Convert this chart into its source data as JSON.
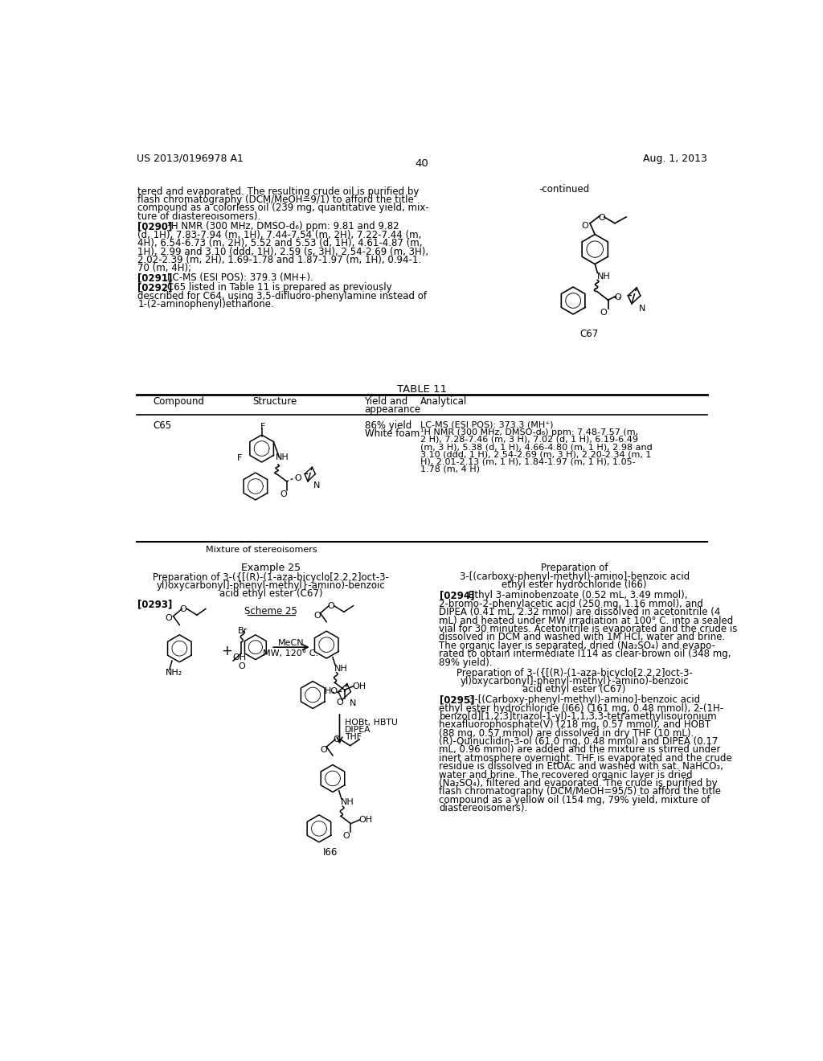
{
  "background_color": "#ffffff",
  "top_left_text": "US 2013/0196978 A1",
  "top_right_text": "Aug. 1, 2013",
  "page_num_text": "40",
  "para_left_1_lines": [
    "tered and evaporated. The resulting crude oil is purified by",
    "flash chromatography (DCM/MeOH=9/1) to afford the title",
    "compound as a colorless oil (239 mg, quantitative yield, mix-",
    "ture of diastereoisomers)."
  ],
  "para_0290_tag": "[0290]",
  "para_0290_lines": [
    "¹H NMR (300 MHz, DMSO-d₆) ppm: 9.81 and 9.82",
    "(d, 1H), 7.83-7.94 (m, 1H), 7.44-7.54 (m, 2H), 7.22-7.44 (m,",
    "4H), 6.54-6.73 (m, 2H), 5.52 and 5.53 (d, 1H), 4.61-4.87 (m,",
    "1H), 2.99 and 3.10 (ddd, 1H), 2.59 (s, 3H), 2.54-2.69 (m, 3H),",
    "2.02-2.39 (m, 2H), 1.69-1.78 and 1.87-1.97 (m, 1H), 0.94-1.",
    "70 (m, 4H);"
  ],
  "para_0291_tag": "[0291]",
  "para_0291_text": "LC-MS (ESI POS): 379.3 (MH+).",
  "para_0292_tag": "[0292]",
  "para_0292_lines": [
    "C65 listed in Table 11 is prepared as previously",
    "described for C64, using 3,5-difluoro-phenylamine instead of",
    "1-(2-aminophenyl)ethanone."
  ],
  "continued_label": "-continued",
  "c67_label": "C67",
  "table_title": "TABLE 11",
  "table_col1": "Compound",
  "table_col2": "Structure",
  "table_col3a": "Yield and",
  "table_col3b": "appearance",
  "table_col4": "Analytical",
  "table_compound": "C65",
  "table_yield_line1": "86% yield",
  "table_yield_line2": "White foam",
  "table_analytical_lines": [
    "LC-MS (ESI POS): 373.3 (MH⁺)",
    "¹H NMR (300 MHz, DMSO-d₆) ppm: 7.48-7.57 (m,",
    "2 H), 7.28-7.46 (m, 3 H), 7.02 (d, 1 H), 6.19-6.49",
    "(m, 3 H), 5.38 (d, 1 H), 4.66-4.80 (m, 1 H), 2.98 and",
    "3.10 (ddd, 1 H), 2.54-2.69 (m, 3 H), 2.20-2.34 (m, 1",
    "H), 2.01-2.13 (m, 1 H), 1.84-1.97 (m, 1 H), 1.05-",
    "1.78 (m, 4 H)"
  ],
  "table_footnote": "Mixture of stereoisomers",
  "ex25_title": "Example 25",
  "ex25_sub_lines": [
    "Preparation of 3-({[(R)-(1-aza-bicyclo[2.2.2]oct-3-",
    "yl)oxycarbonyl]-phenyl-methyl}-amino)-benzoic",
    "acid ethyl ester (C67)"
  ],
  "ex25_tag": "[0293]",
  "scheme25": "Scheme 25",
  "right_head1": "Preparation of",
  "right_head2_lines": [
    "3-[(carboxy-phenyl-methyl)-amino]-benzoic acid",
    "ethyl ester hydrochloride (I66)"
  ],
  "para_0294_tag": "[0294]",
  "para_0294_lines": [
    "Ethyl 3-aminobenzoate (0.52 mL, 3.49 mmol),",
    "2-bromo-2-phenylacetic acid (250 mg, 1.16 mmol), and",
    "DIPEA (0.41 mL, 2.32 mmol) are dissolved in acetonitrile (4",
    "mL) and heated under MW irradiation at 100° C. into a sealed",
    "vial for 30 minutes. Acetonitrile is evaporated and the crude is",
    "dissolved in DCM and washed with 1M HCl, water and brine.",
    "The organic layer is separated, dried (Na₂SO₄) and evapo-",
    "rated to obtain intermediate I114 as clear-brown oil (348 mg,",
    "89% yield)."
  ],
  "right_prep2_lines": [
    "Preparation of 3-({[(R)-(1-aza-bicyclo[2.2.2]oct-3-",
    "yl)oxycarbonyl]-phenyl-methyl}-amino)-benzoic",
    "acid ethyl ester (C67)"
  ],
  "para_0295_tag": "[0295]",
  "para_0295_lines": [
    "3-[(Carboxy-phenyl-methyl)-amino]-benzoic acid",
    "ethyl ester hydrochloride (I66) (161 mg, 0.48 mmol), 2-(1H-",
    "benzo[d][1,2,3]triazol-1-yl)-1,1,3,3-tetramethylisouronium",
    "hexafluorophosphate(V) (218 mg, 0.57 mmol), and HOBT",
    "(88 mg, 0.57 mmol) are dissolved in dry THF (10 mL).",
    "(R)-Quinuclidin-3-ol (61.0 mg, 0.48 mmol) and DIPEA (0.17",
    "mL, 0.96 mmol) are added and the mixture is stirred under",
    "inert atmosphere overnight. THF is evaporated and the crude",
    "residue is dissolved in EtOAc and washed with sat. NaHCO₃,",
    "water and brine. The recovered organic layer is dried",
    "(Na₂SO₄), filtered and evaporated. The crude is purified by",
    "flash chromatography (DCM/MeOH=95/5) to afford the title",
    "compound as a yellow oil (154 mg, 79% yield, mixture of",
    "diastereoisomers)."
  ],
  "i66_label": "I66"
}
